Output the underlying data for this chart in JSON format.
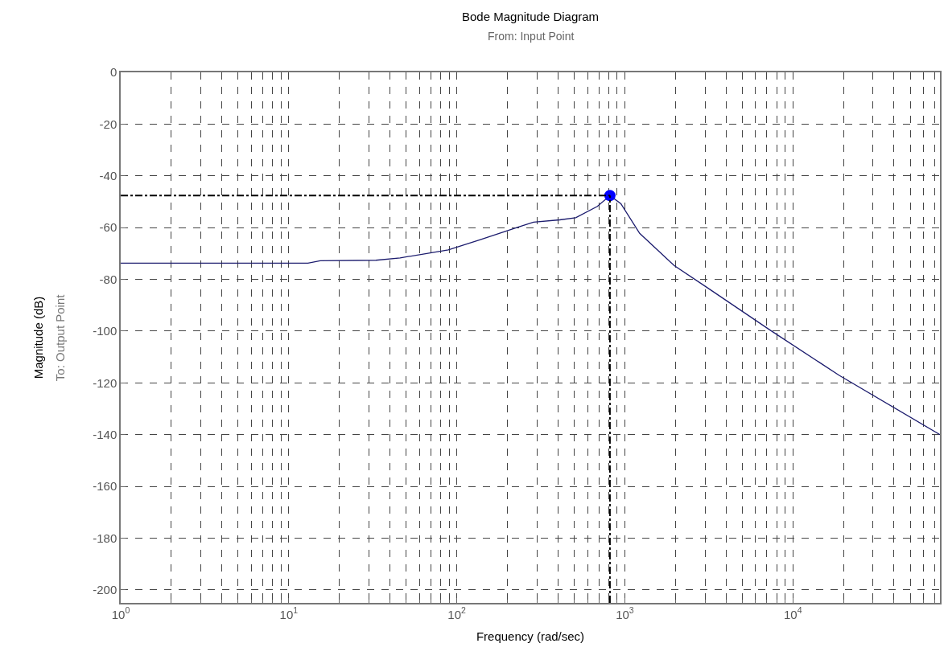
{
  "chart_data": {
    "type": "line",
    "title": "Bode Magnitude Diagram",
    "subtitle": "From: Input Point",
    "xlabel": "Frequency (rad/sec)",
    "ylabel": "Magnitude (dB)",
    "annotations": [
      "To: Output Point"
    ],
    "log": "x",
    "grid": true,
    "xlim": [
      1,
      75000
    ],
    "ylim": [
      -205,
      0
    ],
    "xticks": [
      {
        "value": 1,
        "label": "10$^{0}$"
      },
      {
        "value": 10,
        "label": "10$^{1}$"
      },
      {
        "value": 100,
        "label": "10$^{2}$"
      },
      {
        "value": 1000,
        "label": "10$^{3}$"
      },
      {
        "value": 10000,
        "label": "10$^{4}$"
      }
    ],
    "yticks": [
      0,
      -20,
      -40,
      -60,
      -80,
      -100,
      -120,
      -140,
      -160,
      -180,
      -200
    ],
    "series": [
      {
        "color": "#1c1c6e",
        "marker": "none",
        "line_style": "solid",
        "x": [
          1,
          13,
          15.4,
          33,
          46,
          89,
          137,
          237,
          286,
          410,
          510,
          686,
          815,
          948,
          1225,
          1963,
          3044,
          7280,
          18870,
          75000
        ],
        "values": [
          -73.7,
          -73.7,
          -72.8,
          -72.6,
          -71.7,
          -68.6,
          -64.7,
          -59.6,
          -57.9,
          -57.0,
          -56.2,
          -51.8,
          -47.6,
          -50.8,
          -62.2,
          -74.6,
          -82.9,
          -99.5,
          -117.1,
          -140.0
        ]
      },
      {
        "type": "scatter",
        "color": "#0000ff",
        "marker": "circle",
        "x": [
          815
        ],
        "values": [
          -47.6
        ]
      }
    ],
    "ref_lines": [
      {
        "axis": "y",
        "value": -47.6,
        "color": "#000000",
        "line_style": "dashed"
      },
      {
        "axis": "x",
        "value": 815,
        "color": "#000000",
        "line_style": "dashed"
      }
    ]
  }
}
